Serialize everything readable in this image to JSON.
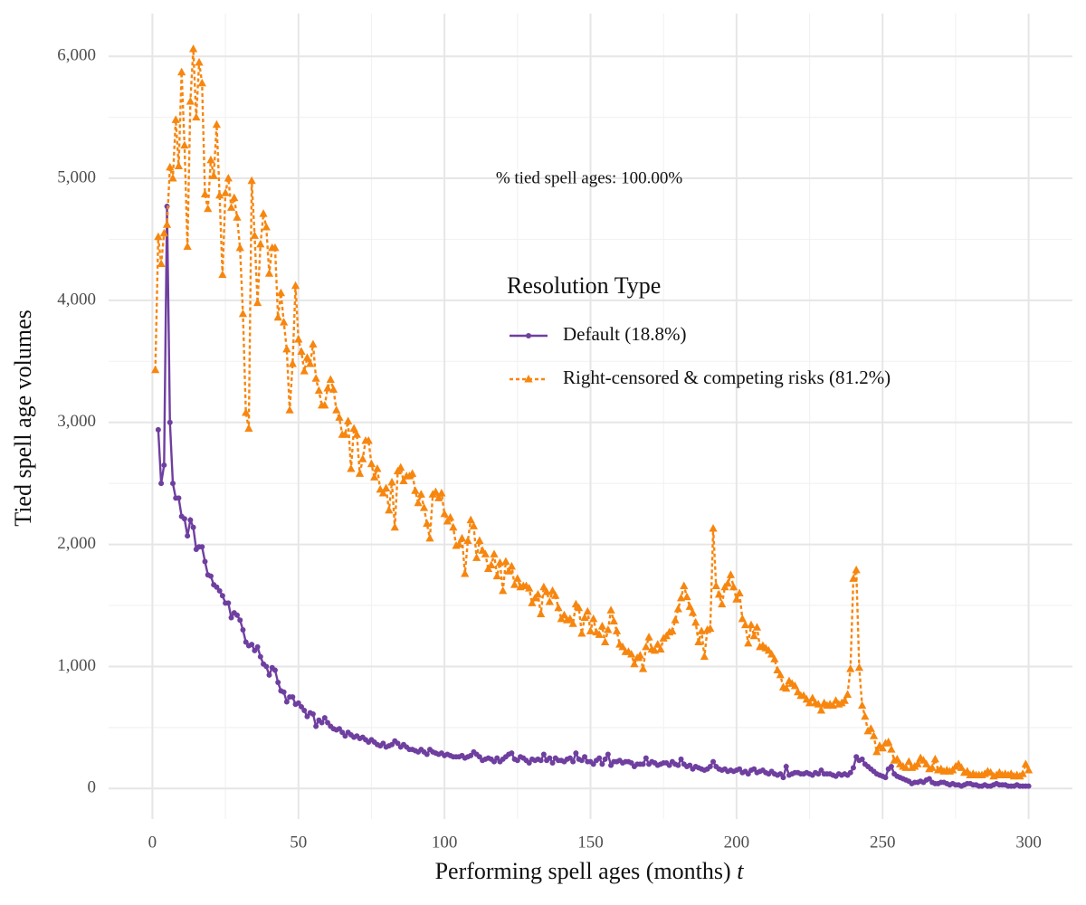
{
  "chart_data": {
    "type": "line",
    "xlabel": "Performing spell ages (months)",
    "xlabel_var": "t",
    "ylabel": "Tied spell age volumes",
    "annotation": "% tied spell ages: 100.00%",
    "legend_title": "Resolution Type",
    "legend": "inside",
    "grid": true,
    "minor_grid": true,
    "xlim": [
      -15,
      315
    ],
    "ylim": [
      -250,
      6350
    ],
    "xticks": [
      0,
      50,
      100,
      150,
      200,
      250,
      300
    ],
    "yticks": [
      0,
      {
        "value": 1000,
        "label": "1,000"
      },
      {
        "value": 2000,
        "label": "2,000"
      },
      {
        "value": 3000,
        "label": "3,000"
      },
      {
        "value": 4000,
        "label": "4,000"
      },
      {
        "value": 5000,
        "label": "5,000"
      },
      {
        "value": 6000,
        "label": "6,000"
      }
    ],
    "x": [
      1,
      2,
      3,
      4,
      5,
      6,
      7,
      8,
      9,
      10,
      11,
      12,
      13,
      14,
      15,
      16,
      17,
      18,
      19,
      20,
      21,
      22,
      23,
      24,
      25,
      26,
      27,
      28,
      29,
      30,
      31,
      32,
      33,
      34,
      35,
      36,
      37,
      38,
      39,
      40,
      41,
      42,
      43,
      44,
      45,
      46,
      47,
      48,
      49,
      50,
      51,
      52,
      53,
      54,
      55,
      56,
      57,
      58,
      59,
      60,
      61,
      62,
      63,
      64,
      65,
      66,
      67,
      68,
      69,
      70,
      71,
      72,
      73,
      74,
      75,
      76,
      77,
      78,
      79,
      80,
      81,
      82,
      83,
      84,
      85,
      86,
      87,
      88,
      89,
      90,
      91,
      92,
      93,
      94,
      95,
      96,
      97,
      98,
      99,
      100,
      101,
      102,
      103,
      104,
      105,
      106,
      107,
      108,
      109,
      110,
      111,
      112,
      113,
      114,
      115,
      116,
      117,
      118,
      119,
      120,
      121,
      122,
      123,
      124,
      125,
      126,
      127,
      128,
      129,
      130,
      131,
      132,
      133,
      134,
      135,
      136,
      137,
      138,
      139,
      140,
      141,
      142,
      143,
      144,
      145,
      146,
      147,
      148,
      149,
      150,
      151,
      152,
      153,
      154,
      155,
      156,
      157,
      158,
      159,
      160,
      161,
      162,
      163,
      164,
      165,
      166,
      167,
      168,
      169,
      170,
      171,
      172,
      173,
      174,
      175,
      176,
      177,
      178,
      179,
      180,
      181,
      182,
      183,
      184,
      185,
      186,
      187,
      188,
      189,
      190,
      191,
      192,
      193,
      194,
      195,
      196,
      197,
      198,
      199,
      200,
      201,
      202,
      203,
      204,
      205,
      206,
      207,
      208,
      209,
      210,
      211,
      212,
      213,
      214,
      215,
      216,
      217,
      218,
      219,
      220,
      221,
      222,
      223,
      224,
      225,
      226,
      227,
      228,
      229,
      230,
      231,
      232,
      233,
      234,
      235,
      236,
      237,
      238,
      239,
      240,
      241,
      242,
      243,
      244,
      245,
      246,
      247,
      248,
      249,
      250,
      251,
      252,
      253,
      254,
      255,
      256,
      257,
      258,
      259,
      260,
      261,
      262,
      263,
      264,
      265,
      266,
      267,
      268,
      269,
      270,
      271,
      272,
      273,
      274,
      275,
      276,
      277,
      278,
      279,
      280,
      281,
      282,
      283,
      284,
      285,
      286,
      287,
      288,
      289,
      290,
      291,
      292,
      293,
      294,
      295,
      296,
      297,
      298,
      299,
      300
    ],
    "series": [
      {
        "name": "Default (18.8%)",
        "color": "#6f3fa0",
        "marker": "circle",
        "dash": false,
        "values": [
          null,
          2940,
          2500,
          2650,
          4770,
          3000,
          2500,
          2380,
          2380,
          2230,
          2210,
          2070,
          2200,
          2140,
          1960,
          1980,
          1980,
          1860,
          1750,
          1740,
          1670,
          1650,
          1620,
          1580,
          1520,
          1520,
          1400,
          1440,
          1420,
          1380,
          1300,
          1200,
          1170,
          1180,
          1130,
          1160,
          1080,
          1020,
          1000,
          930,
          990,
          970,
          870,
          800,
          790,
          710,
          750,
          750,
          690,
          700,
          670,
          640,
          590,
          620,
          610,
          510,
          560,
          540,
          580,
          540,
          510,
          490,
          480,
          490,
          460,
          430,
          460,
          440,
          420,
          430,
          410,
          420,
          400,
          380,
          400,
          380,
          360,
          350,
          370,
          340,
          350,
          360,
          390,
          370,
          340,
          360,
          340,
          320,
          320,
          310,
          300,
          320,
          300,
          280,
          320,
          300,
          290,
          280,
          290,
          270,
          280,
          270,
          260,
          260,
          260,
          270,
          250,
          260,
          270,
          300,
          280,
          260,
          230,
          240,
          250,
          240,
          220,
          250,
          220,
          240,
          260,
          280,
          290,
          240,
          230,
          260,
          250,
          230,
          210,
          240,
          230,
          240,
          230,
          280,
          230,
          250,
          210,
          250,
          230,
          230,
          220,
          240,
          250,
          220,
          290,
          240,
          230,
          260,
          220,
          220,
          200,
          230,
          250,
          200,
          240,
          280,
          190,
          220,
          220,
          230,
          210,
          220,
          220,
          210,
          180,
          200,
          200,
          200,
          250,
          200,
          220,
          210,
          190,
          200,
          210,
          210,
          190,
          220,
          200,
          190,
          240,
          200,
          180,
          190,
          160,
          180,
          170,
          160,
          150,
          160,
          180,
          220,
          180,
          160,
          150,
          160,
          140,
          150,
          140,
          150,
          160,
          130,
          140,
          120,
          150,
          160,
          130,
          140,
          150,
          130,
          120,
          140,
          120,
          110,
          120,
          90,
          180,
          110,
          120,
          130,
          130,
          120,
          120,
          130,
          120,
          110,
          130,
          120,
          150,
          120,
          120,
          120,
          110,
          100,
          120,
          110,
          120,
          110,
          130,
          170,
          260,
          230,
          240,
          200,
          180,
          160,
          140,
          120,
          110,
          100,
          90,
          160,
          180,
          120,
          100,
          90,
          80,
          70,
          60,
          40,
          50,
          50,
          60,
          50,
          70,
          80,
          50,
          40,
          40,
          50,
          50,
          40,
          30,
          40,
          30,
          30,
          20,
          30,
          40,
          40,
          30,
          30,
          20,
          20,
          30,
          20,
          20,
          30,
          40,
          30,
          30,
          30,
          20,
          20,
          20,
          30,
          20,
          20,
          20,
          20
        ]
      },
      {
        "name": "Right-censored & competing risks (81.2%)",
        "color": "#f7860f",
        "marker": "triangle",
        "dash": true,
        "values": [
          3430,
          4520,
          4300,
          4550,
          4620,
          5090,
          5000,
          5480,
          5100,
          5870,
          5270,
          4440,
          5630,
          6060,
          5500,
          5950,
          5780,
          4870,
          4750,
          5150,
          5020,
          5440,
          4860,
          4210,
          4880,
          5000,
          4760,
          4840,
          4680,
          4430,
          3890,
          3080,
          2950,
          4980,
          4530,
          3980,
          4460,
          4710,
          4600,
          4220,
          4430,
          4430,
          3860,
          4060,
          3820,
          3600,
          3100,
          3480,
          4120,
          3680,
          3580,
          3420,
          3530,
          3480,
          3640,
          3360,
          3260,
          3140,
          3140,
          3280,
          3350,
          3270,
          3100,
          3040,
          2900,
          2900,
          3010,
          2620,
          2950,
          2900,
          2580,
          2700,
          2850,
          2850,
          2660,
          2550,
          2620,
          2450,
          2420,
          2460,
          2280,
          2510,
          2140,
          2600,
          2630,
          2520,
          2560,
          2560,
          2580,
          2440,
          2340,
          2410,
          2300,
          2170,
          2050,
          2410,
          2430,
          2380,
          2420,
          2250,
          2190,
          2220,
          2140,
          1990,
          2000,
          2050,
          1760,
          2030,
          2200,
          2150,
          1890,
          2030,
          1950,
          1920,
          1800,
          1830,
          1920,
          1740,
          1850,
          1620,
          1860,
          1780,
          1820,
          1670,
          1720,
          1650,
          1660,
          1660,
          1640,
          1520,
          1560,
          1590,
          1430,
          1650,
          1610,
          1530,
          1620,
          1580,
          1480,
          1390,
          1420,
          1380,
          1390,
          1350,
          1510,
          1480,
          1270,
          1400,
          1450,
          1290,
          1390,
          1280,
          1260,
          1330,
          1200,
          1300,
          1460,
          1370,
          1290,
          1180,
          1160,
          1120,
          1120,
          1100,
          1020,
          1070,
          1090,
          980,
          1160,
          1240,
          1140,
          1130,
          1180,
          1140,
          1230,
          1250,
          1280,
          1290,
          1380,
          1470,
          1560,
          1660,
          1570,
          1490,
          1440,
          1360,
          1200,
          1290,
          1080,
          1300,
          1310,
          2130,
          1660,
          1590,
          1510,
          1650,
          1680,
          1750,
          1650,
          1550,
          1600,
          1390,
          1340,
          1190,
          1340,
          1250,
          1320,
          1160,
          1170,
          1150,
          1130,
          1100,
          1060,
          970,
          930,
          830,
          820,
          880,
          860,
          840,
          790,
          760,
          760,
          730,
          700,
          740,
          700,
          690,
          640,
          700,
          680,
          690,
          680,
          720,
          690,
          700,
          720,
          770,
          980,
          1720,
          1790,
          990,
          680,
          590,
          470,
          490,
          430,
          300,
          350,
          330,
          370,
          380,
          320,
          230,
          240,
          200,
          180,
          170,
          220,
          170,
          180,
          200,
          250,
          230,
          200,
          160,
          170,
          240,
          150,
          160,
          140,
          150,
          140,
          150,
          180,
          200,
          170,
          130,
          140,
          110,
          120,
          110,
          110,
          110,
          120,
          140,
          130,
          100,
          110,
          130,
          110,
          120,
          110,
          120,
          100,
          110,
          100,
          120,
          200,
          150
        ]
      }
    ]
  }
}
